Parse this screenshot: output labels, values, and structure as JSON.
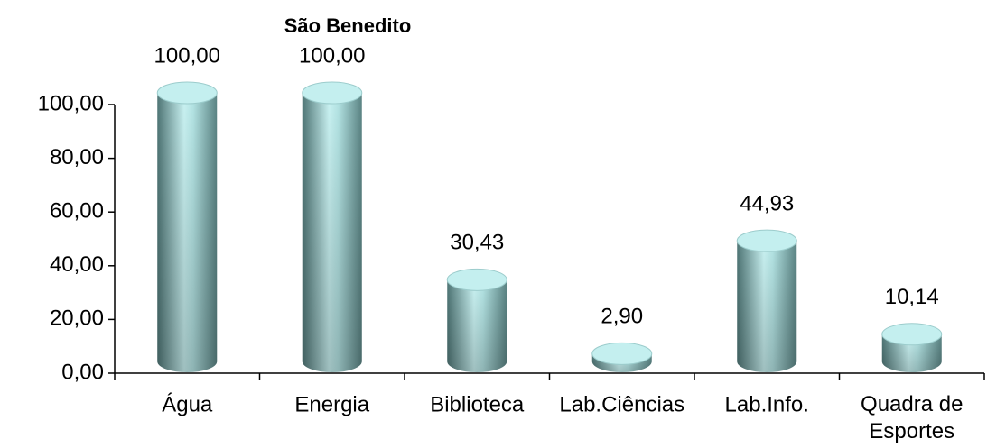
{
  "chart_data": {
    "type": "bar",
    "title": "São Benedito",
    "categories": [
      "Água",
      "Energia",
      "Biblioteca",
      "Lab.Ciências",
      "Lab.Info.",
      "Quadra de Esportes"
    ],
    "values": [
      100,
      100,
      30.43,
      2.9,
      44.93,
      10.14
    ],
    "value_labels": [
      "100,00",
      "100,00",
      "30,43",
      "2,90",
      "44,93",
      "10,14"
    ],
    "color": "#9fd4d4",
    "ylim": [
      0,
      100
    ],
    "yticks": [
      {
        "value": 0,
        "label": "0,00"
      },
      {
        "value": 20,
        "label": "20,00"
      },
      {
        "value": 40,
        "label": "40,00"
      },
      {
        "value": 60,
        "label": "60,00"
      },
      {
        "value": 80,
        "label": "80,00"
      },
      {
        "value": 100,
        "label": "100,00"
      }
    ]
  }
}
